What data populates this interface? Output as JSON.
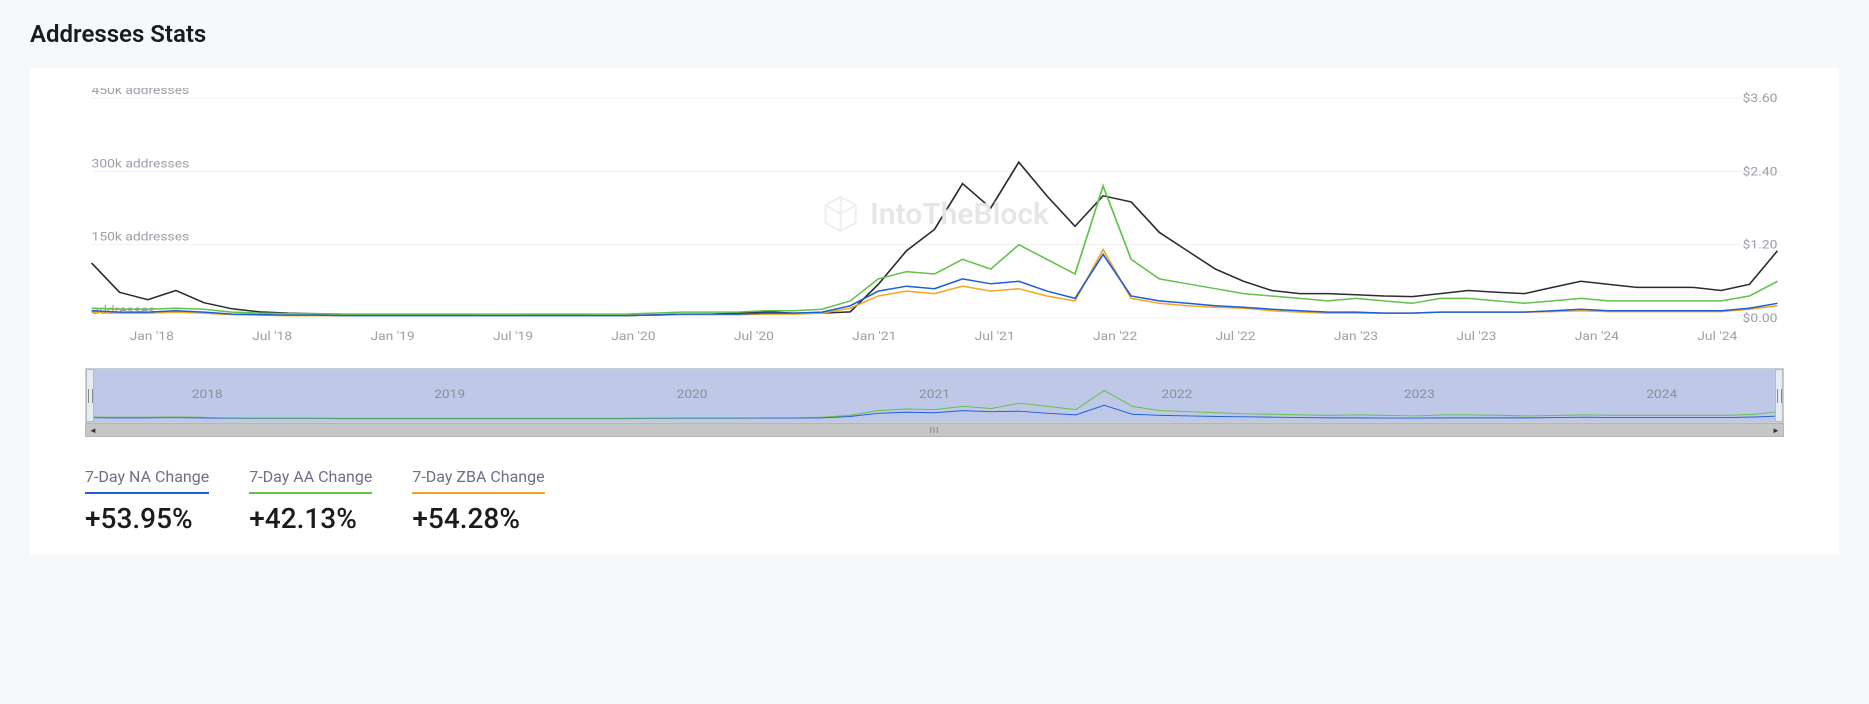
{
  "title": "Addresses Stats",
  "watermark_text": "IntoTheBlock",
  "chart": {
    "type": "line",
    "background_color": "#ffffff",
    "grid_color": "#f0f1f3",
    "y_left": {
      "ticks": [
        0,
        150000,
        300000,
        450000
      ],
      "tick_labels": [
        "addresses",
        "150k addresses",
        "300k addresses",
        "450k addresses"
      ],
      "label_color": "#9aa0a8",
      "label_fontsize": 12
    },
    "y_right": {
      "ticks": [
        0,
        1.2,
        2.4,
        3.6
      ],
      "tick_labels": [
        "$0.00",
        "$1.20",
        "$2.40",
        "$3.60"
      ],
      "label_color": "#9aa0a8",
      "label_fontsize": 12
    },
    "x": {
      "tick_labels": [
        "Jan '18",
        "Jul '18",
        "Jan '19",
        "Jul '19",
        "Jan '20",
        "Jul '20",
        "Jan '21",
        "Jul '21",
        "Jan '22",
        "Jul '22",
        "Jan '23",
        "Jul '23",
        "Jan '24",
        "Jul '24"
      ],
      "label_color": "#9aa0a8",
      "label_fontsize": 12
    },
    "series": {
      "price": {
        "axis": "right",
        "color": "#2b2c2e",
        "line_width": 1.5,
        "values": [
          0.9,
          0.42,
          0.3,
          0.45,
          0.25,
          0.15,
          0.1,
          0.08,
          0.07,
          0.06,
          0.06,
          0.05,
          0.05,
          0.05,
          0.04,
          0.04,
          0.05,
          0.05,
          0.04,
          0.04,
          0.05,
          0.06,
          0.06,
          0.08,
          0.1,
          0.08,
          0.08,
          0.1,
          0.55,
          1.1,
          1.45,
          2.2,
          1.8,
          2.55,
          2.0,
          1.5,
          2.0,
          1.9,
          1.4,
          1.1,
          0.8,
          0.6,
          0.45,
          0.4,
          0.4,
          0.38,
          0.36,
          0.35,
          0.4,
          0.45,
          0.42,
          0.4,
          0.5,
          0.6,
          0.55,
          0.5,
          0.5,
          0.5,
          0.45,
          0.55,
          1.1
        ]
      },
      "na": {
        "axis": "left",
        "color": "#1d5fd6",
        "line_width": 1.5,
        "values": [
          15000,
          12000,
          12000,
          15000,
          12000,
          8000,
          7000,
          6000,
          6000,
          5000,
          5000,
          5000,
          5000,
          5000,
          5000,
          5000,
          5000,
          5000,
          5000,
          5000,
          6000,
          8000,
          8000,
          8000,
          10000,
          10000,
          12000,
          25000,
          55000,
          65000,
          60000,
          80000,
          70000,
          75000,
          55000,
          40000,
          130000,
          45000,
          35000,
          30000,
          25000,
          22000,
          18000,
          15000,
          12000,
          12000,
          10000,
          10000,
          12000,
          12000,
          12000,
          12000,
          15000,
          18000,
          15000,
          15000,
          15000,
          15000,
          15000,
          20000,
          30000
        ]
      },
      "aa": {
        "axis": "left",
        "color": "#63c24b",
        "line_width": 1.5,
        "values": [
          20000,
          18000,
          18000,
          20000,
          18000,
          12000,
          10000,
          9000,
          9000,
          8000,
          8000,
          8000,
          8000,
          8000,
          8000,
          8000,
          8000,
          8000,
          8000,
          8000,
          10000,
          12000,
          12000,
          12000,
          15000,
          15000,
          18000,
          35000,
          80000,
          95000,
          90000,
          120000,
          100000,
          150000,
          120000,
          90000,
          270000,
          120000,
          80000,
          70000,
          60000,
          50000,
          45000,
          40000,
          35000,
          40000,
          35000,
          30000,
          40000,
          40000,
          35000,
          30000,
          35000,
          40000,
          35000,
          35000,
          35000,
          35000,
          35000,
          45000,
          75000
        ]
      },
      "zba": {
        "axis": "left",
        "color": "#f5a524",
        "line_width": 1.5,
        "values": [
          12000,
          10000,
          10000,
          12000,
          10000,
          7000,
          6000,
          5000,
          5000,
          5000,
          5000,
          5000,
          5000,
          5000,
          5000,
          5000,
          5000,
          5000,
          5000,
          5000,
          6000,
          7000,
          7000,
          7000,
          8000,
          8000,
          10000,
          20000,
          45000,
          55000,
          50000,
          65000,
          55000,
          60000,
          45000,
          35000,
          140000,
          40000,
          30000,
          25000,
          22000,
          20000,
          15000,
          12000,
          10000,
          10000,
          10000,
          10000,
          12000,
          12000,
          12000,
          12000,
          13000,
          15000,
          13000,
          13000,
          13000,
          13000,
          13000,
          18000,
          25000
        ]
      }
    }
  },
  "brush": {
    "background_color": "#bfc8e6",
    "tick_labels": [
      "2018",
      "2019",
      "2020",
      "2021",
      "2022",
      "2023",
      "2024"
    ],
    "label_color": "#8a8f99"
  },
  "stats": [
    {
      "label": "7-Day NA Change",
      "value": "+53.95%",
      "underline_color": "#1d5fd6"
    },
    {
      "label": "7-Day AA Change",
      "value": "+42.13%",
      "underline_color": "#63c24b"
    },
    {
      "label": "7-Day ZBA Change",
      "value": "+54.28%",
      "underline_color": "#f5a524"
    }
  ]
}
